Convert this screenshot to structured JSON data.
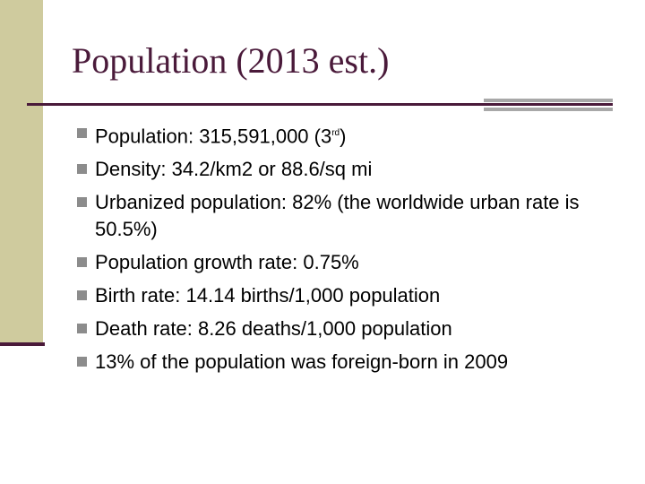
{
  "slide": {
    "title": "Population (2013 est.)",
    "bullets": [
      {
        "text": "Population: 315,591,000 (3",
        "sup": "rd",
        "after": ")"
      },
      {
        "text": "Density:  34.2/km2 or 88.6/sq mi"
      },
      {
        "text": "Urbanized population: 82% (the worldwide urban rate is 50.5%)"
      },
      {
        "text": "Population growth rate: 0.75%"
      },
      {
        "text": "Birth rate: 14.14 births/1,000 population"
      },
      {
        "text": "Death rate: 8.26 deaths/1,000 population"
      },
      {
        "text": "13% of the population was foreign-born in 2009"
      }
    ]
  }
}
